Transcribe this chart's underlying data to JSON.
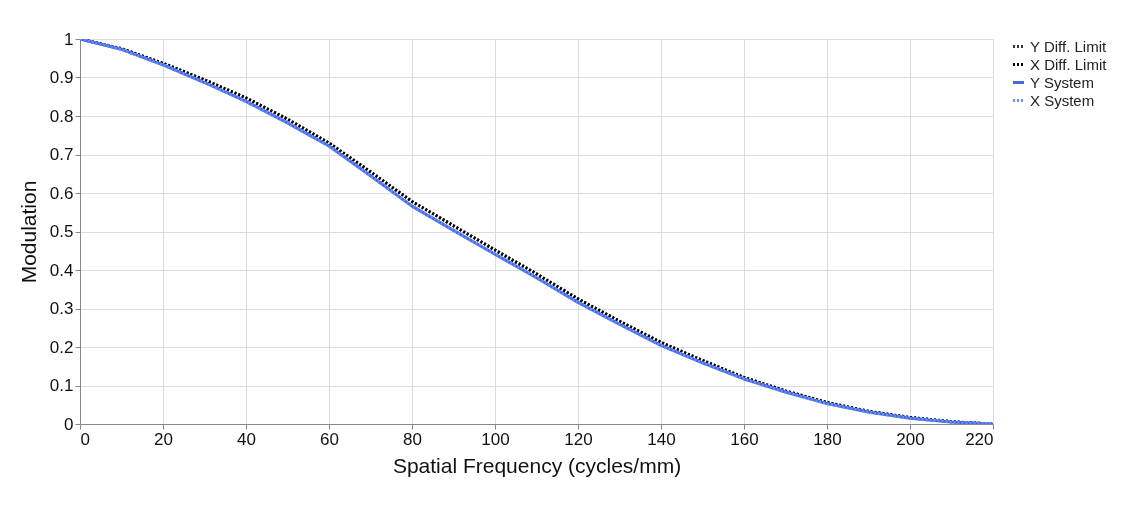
{
  "chart_data": {
    "type": "line",
    "xlabel": "Spatial Frequency (cycles/mm)",
    "ylabel": "Modulation",
    "x": [
      0,
      10,
      20,
      30,
      40,
      50,
      60,
      70,
      80,
      90,
      100,
      110,
      120,
      130,
      140,
      150,
      160,
      170,
      180,
      190,
      200,
      210,
      220
    ],
    "series": [
      {
        "name": "Y Diff. Limit",
        "color": "#333333",
        "line_style": "dotted",
        "values": [
          1,
          0.975,
          0.937,
          0.894,
          0.847,
          0.792,
          0.73,
          0.655,
          0.578,
          0.515,
          0.452,
          0.39,
          0.325,
          0.267,
          0.212,
          0.165,
          0.121,
          0.086,
          0.056,
          0.033,
          0.017,
          0.006,
          0
        ]
      },
      {
        "name": "X Diff. Limit",
        "color": "#000000",
        "line_style": "dotted",
        "values": [
          1,
          0.975,
          0.937,
          0.894,
          0.847,
          0.792,
          0.73,
          0.655,
          0.578,
          0.515,
          0.452,
          0.39,
          0.325,
          0.267,
          0.212,
          0.165,
          0.121,
          0.086,
          0.056,
          0.033,
          0.017,
          0.006,
          0
        ]
      },
      {
        "name": "Y System",
        "color": "#4169e1",
        "line_style": "solid",
        "values": [
          1,
          0.973,
          0.933,
          0.887,
          0.838,
          0.782,
          0.722,
          0.645,
          0.566,
          0.503,
          0.441,
          0.38,
          0.316,
          0.259,
          0.204,
          0.159,
          0.117,
          0.083,
          0.053,
          0.031,
          0.015,
          0.005,
          0
        ]
      },
      {
        "name": "X System",
        "color": "#6a8cff",
        "line_style": "dotted",
        "values": [
          1,
          0.973,
          0.933,
          0.887,
          0.838,
          0.782,
          0.722,
          0.645,
          0.566,
          0.503,
          0.441,
          0.38,
          0.316,
          0.259,
          0.204,
          0.159,
          0.117,
          0.083,
          0.053,
          0.031,
          0.015,
          0.005,
          0
        ]
      }
    ],
    "xlim": [
      0,
      220
    ],
    "xticks": [
      0,
      20,
      40,
      60,
      80,
      100,
      120,
      140,
      160,
      180,
      200,
      220
    ],
    "ylim": [
      0,
      1
    ],
    "yticks": [
      0,
      0.1,
      0.2,
      0.3,
      0.4,
      0.5,
      0.6,
      0.7,
      0.8,
      0.9,
      1
    ],
    "grid": true,
    "legend": "right"
  }
}
